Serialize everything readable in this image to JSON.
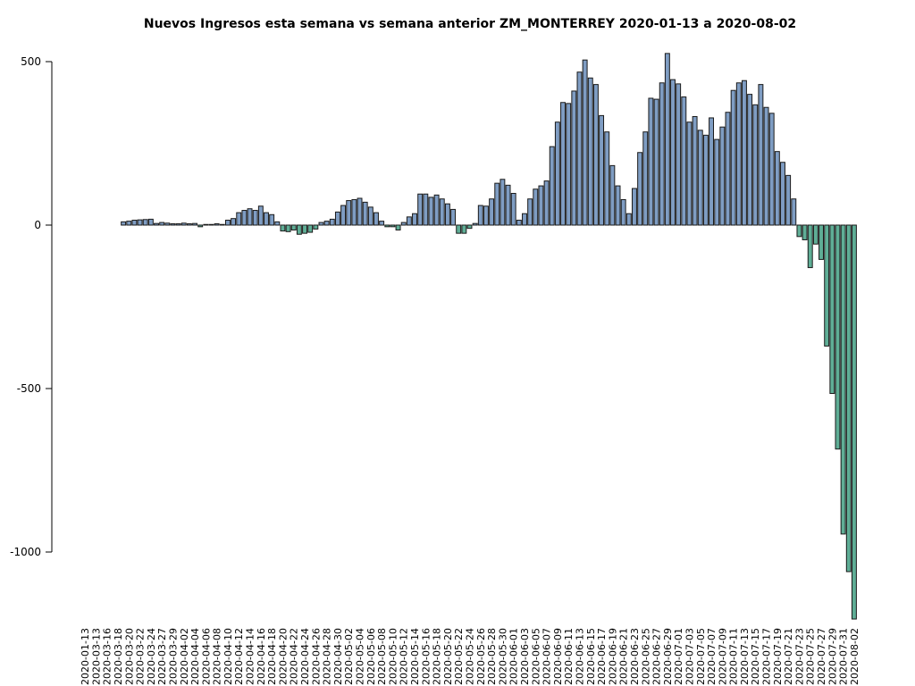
{
  "chart_data": {
    "type": "bar",
    "title": "Nuevos Ingresos esta semana vs semana anterior ZM_MONTERREY 2020-01-13 a 2020-08-02",
    "categories": [
      "2020-01-13",
      null,
      "2020-03-13",
      null,
      "2020-03-16",
      null,
      "2020-03-18",
      null,
      "2020-03-20",
      null,
      "2020-03-22",
      null,
      "2020-03-24",
      null,
      "2020-03-27",
      null,
      "2020-03-29",
      null,
      "2020-04-02",
      null,
      "2020-04-04",
      null,
      "2020-04-06",
      null,
      "2020-04-08",
      null,
      "2020-04-10",
      null,
      "2020-04-12",
      null,
      "2020-04-14",
      null,
      "2020-04-16",
      null,
      "2020-04-18",
      null,
      "2020-04-20",
      null,
      "2020-04-22",
      null,
      "2020-04-24",
      null,
      "2020-04-26",
      null,
      "2020-04-28",
      null,
      "2020-04-30",
      null,
      "2020-05-02",
      null,
      "2020-05-04",
      null,
      "2020-05-06",
      null,
      "2020-05-08",
      null,
      "2020-05-10",
      null,
      "2020-05-12",
      null,
      "2020-05-14",
      null,
      "2020-05-16",
      null,
      "2020-05-18",
      null,
      "2020-05-20",
      null,
      "2020-05-22",
      null,
      "2020-05-24",
      null,
      "2020-05-26",
      null,
      "2020-05-28",
      null,
      "2020-05-30",
      null,
      "2020-06-01",
      null,
      "2020-06-03",
      null,
      "2020-06-05",
      null,
      "2020-06-07",
      null,
      "2020-06-09",
      null,
      "2020-06-11",
      null,
      "2020-06-13",
      null,
      "2020-06-15",
      null,
      "2020-06-17",
      null,
      "2020-06-19",
      null,
      "2020-06-21",
      null,
      "2020-06-23",
      null,
      "2020-06-25",
      null,
      "2020-06-27",
      null,
      "2020-06-29",
      null,
      "2020-07-01",
      null,
      "2020-07-03",
      null,
      "2020-07-05",
      null,
      "2020-07-07",
      null,
      "2020-07-09",
      null,
      "2020-07-11",
      null,
      "2020-07-13",
      null,
      "2020-07-15",
      null,
      "2020-07-17",
      null,
      "2020-07-19",
      null,
      "2020-07-21",
      null,
      "2020-07-23",
      null,
      "2020-07-25",
      null,
      "2020-07-27",
      null,
      "2020-07-29",
      null,
      "2020-07-31",
      null,
      "2020-08-02"
    ],
    "values": [
      0,
      0,
      0,
      0,
      0,
      0,
      0,
      10,
      12,
      15,
      16,
      17,
      18,
      5,
      8,
      6,
      4,
      4,
      6,
      4,
      5,
      -5,
      2,
      2,
      4,
      2,
      15,
      20,
      38,
      45,
      50,
      45,
      58,
      38,
      32,
      10,
      -18,
      -20,
      -15,
      -28,
      -25,
      -22,
      -12,
      8,
      12,
      18,
      40,
      60,
      75,
      78,
      82,
      70,
      55,
      38,
      12,
      -5,
      -5,
      -15,
      8,
      25,
      35,
      95,
      95,
      85,
      92,
      80,
      65,
      48,
      -25,
      -25,
      -10,
      5,
      60,
      58,
      80,
      128,
      140,
      122,
      97,
      15,
      35,
      80,
      110,
      120,
      135,
      240,
      315,
      375,
      372,
      410,
      468,
      505,
      450,
      430,
      335,
      285,
      182,
      120,
      78,
      35,
      112,
      222,
      285,
      388,
      385,
      435,
      525,
      445,
      432,
      392,
      315,
      332,
      290,
      275,
      328,
      262,
      300,
      345,
      412,
      435,
      442,
      400,
      368,
      430,
      360,
      342,
      225,
      192,
      152,
      80,
      -35,
      -45,
      -130,
      -58,
      -105,
      -370,
      -515,
      -685,
      -945,
      -1060,
      -1205
    ],
    "color_positive": "#7f9dc3",
    "color_negative": "#5fae96",
    "ylim": [
      -1250,
      550
    ],
    "yticks": [
      500,
      0,
      -500,
      -1000
    ]
  }
}
